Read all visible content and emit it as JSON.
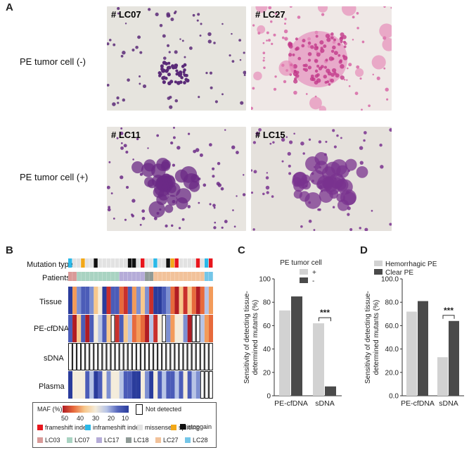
{
  "panelA": {
    "letter": "A",
    "row1_label": "PE tumor cell (-)",
    "row2_label": "PE tumor cell (+)",
    "images": [
      {
        "label": "# LC07",
        "bg": "#e6e4de",
        "stain": "#5a2a78",
        "cluster": "small"
      },
      {
        "label": "# LC27",
        "bg": "#efe8e6",
        "stain": "#d767a6",
        "cluster": "pink"
      },
      {
        "label": "# LC11",
        "bg": "#e8e5e0",
        "stain": "#6b2a86",
        "cluster": "large"
      },
      {
        "label": "# LC15",
        "bg": "#e5e1dc",
        "stain": "#7a338f",
        "cluster": "large"
      }
    ]
  },
  "panelB": {
    "letter": "B",
    "rows": [
      "Mutation type",
      "Patients",
      "Tissue",
      "PE-cfDNA",
      "sDNA",
      "Plasma"
    ],
    "legend_title": "MAF (%)",
    "scale_ticks": [
      "50",
      "40",
      "30",
      "20",
      "10"
    ],
    "not_detected": "Not detected",
    "mutation_types": [
      {
        "name": "frameshift indel",
        "color": "#e8161d"
      },
      {
        "name": "inframeshift indel",
        "color": "#2bb9e8"
      },
      {
        "name": "missense",
        "color": "#e2e2e2"
      },
      {
        "name": "splicing",
        "color": "#f2a818"
      },
      {
        "name": "stopgain",
        "color": "#111111"
      }
    ],
    "patients": [
      {
        "name": "LC03",
        "color": "#d99a98"
      },
      {
        "name": "LC07",
        "color": "#a9d3c2"
      },
      {
        "name": "LC17",
        "color": "#b5acd8"
      },
      {
        "name": "LC18",
        "color": "#8f9a96"
      },
      {
        "name": "LC27",
        "color": "#f2c29a"
      },
      {
        "name": "LC28",
        "color": "#74c6e8"
      }
    ]
  },
  "panelC": {
    "letter": "C",
    "legend_title": "PE tumor cell",
    "legend_items": [
      "+",
      "-"
    ],
    "ylabel": "Sensitivity of detecting tissue-determined mutants (%)",
    "sig": "***",
    "chart_data": {
      "type": "bar",
      "categories": [
        "PE-cfDNA",
        "sDNA"
      ],
      "series": [
        {
          "name": "+",
          "values": [
            73,
            62
          ],
          "color": "#d2d2d2"
        },
        {
          "name": "-",
          "values": [
            85,
            8
          ],
          "color": "#4a4a4a"
        }
      ],
      "ylim": [
        0,
        100
      ],
      "yticks": [
        "0",
        "20",
        "40",
        "60",
        "80",
        "100"
      ],
      "ylabel": "Sensitivity of detecting tissue-determined mutants (%)"
    }
  },
  "panelD": {
    "letter": "D",
    "legend_items": [
      "Hemorrhagic PE",
      "Clear PE"
    ],
    "ylabel": "Sensitivity of detecting tissue-determined mutants (%)",
    "sig": "***",
    "chart_data": {
      "type": "bar",
      "categories": [
        "PE-cfDNA",
        "sDNA"
      ],
      "series": [
        {
          "name": "Hemorrhagic PE",
          "values": [
            72,
            33
          ],
          "color": "#d2d2d2"
        },
        {
          "name": "Clear PE",
          "values": [
            81,
            64
          ],
          "color": "#4a4a4a"
        }
      ],
      "ylim": [
        0,
        100
      ],
      "yticks": [
        "0.0",
        "20.0",
        "40.0",
        "60.0",
        "80.0",
        "100.0"
      ],
      "ylabel": "Sensitivity of detecting tissue-determined mutants (%)"
    }
  }
}
